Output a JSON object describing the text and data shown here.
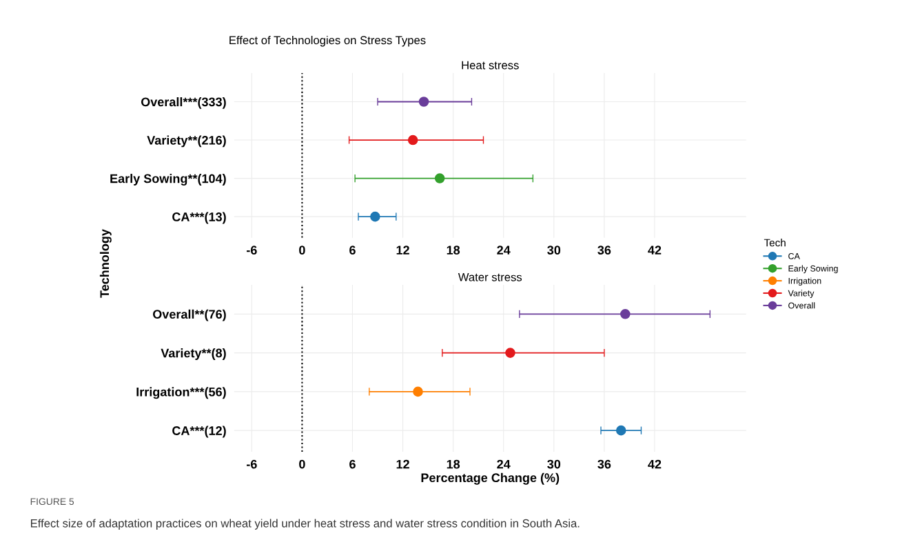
{
  "chart_data": [
    {
      "type": "scatter",
      "orientation": "horizontal",
      "title": "Effect of Technologies on Stress Types",
      "subtitle": "Heat stress",
      "ylabel": "Technology",
      "legend_title": "Tech",
      "legend": "right",
      "marker": "circle",
      "grid": true,
      "categories": [
        "Overall***(333)",
        "Variety**(216)",
        "Early Sowing**(104)",
        "CA***(13)"
      ],
      "xlim": [
        -8.1,
        52.9
      ],
      "xticks": [
        -6,
        0,
        6,
        12,
        18,
        24,
        30,
        36,
        42
      ],
      "ref_lines": [
        {
          "axis": "x",
          "value": 0,
          "label": null,
          "line_style": "dotted",
          "color": "#000000"
        }
      ],
      "series": [
        {
          "name": "CA",
          "color": "#1f78b4",
          "values": [
            null,
            null,
            null,
            8.7
          ],
          "errors": [
            null,
            null,
            null,
            [
              6.7,
              11.2
            ]
          ]
        },
        {
          "name": "Early Sowing",
          "color": "#33a02c",
          "values": [
            null,
            null,
            16.4,
            null
          ],
          "errors": [
            null,
            null,
            [
              6.3,
              27.5
            ],
            null
          ]
        },
        {
          "name": "Variety",
          "color": "#e31a1c",
          "values": [
            null,
            13.2,
            null,
            null
          ],
          "errors": [
            null,
            [
              5.6,
              21.6
            ],
            null,
            null
          ]
        },
        {
          "name": "Overall",
          "color": "#6a3d9a",
          "values": [
            14.5,
            null,
            null,
            null
          ],
          "errors": [
            [
              9.0,
              20.2
            ],
            null,
            null,
            null
          ]
        }
      ]
    },
    {
      "type": "scatter",
      "orientation": "horizontal",
      "subtitle": "Water stress",
      "xlabel": "Percentage Change (%)",
      "marker": "circle",
      "grid": true,
      "categories": [
        "Overall**(76)",
        "Variety**(8)",
        "Irrigation***(56)",
        "CA***(12)"
      ],
      "xlim": [
        -8.1,
        52.9
      ],
      "xticks": [
        -6,
        0,
        6,
        12,
        18,
        24,
        30,
        36,
        42
      ],
      "ref_lines": [
        {
          "axis": "x",
          "value": 0,
          "label": null,
          "line_style": "dotted",
          "color": "#000000"
        }
      ],
      "annotations": [
        "FIGURE 5",
        "Effect size of adaptation practices on wheat yield under heat stress and water stress condition in South Asia."
      ],
      "series": [
        {
          "name": "CA",
          "color": "#1f78b4",
          "values": [
            null,
            null,
            null,
            38.0
          ],
          "errors": [
            null,
            null,
            null,
            [
              35.6,
              40.4
            ]
          ]
        },
        {
          "name": "Irrigation",
          "color": "#ff7f00",
          "values": [
            null,
            null,
            13.8,
            null
          ],
          "errors": [
            null,
            null,
            [
              8.0,
              20.0
            ],
            null
          ]
        },
        {
          "name": "Variety",
          "color": "#e31a1c",
          "values": [
            null,
            24.8,
            null,
            null
          ],
          "errors": [
            null,
            [
              16.7,
              36.0
            ],
            null,
            null
          ]
        },
        {
          "name": "Overall",
          "color": "#6a3d9a",
          "values": [
            38.5,
            null,
            null,
            null
          ],
          "errors": [
            [
              25.9,
              48.6
            ],
            null,
            null,
            null
          ]
        }
      ]
    }
  ]
}
